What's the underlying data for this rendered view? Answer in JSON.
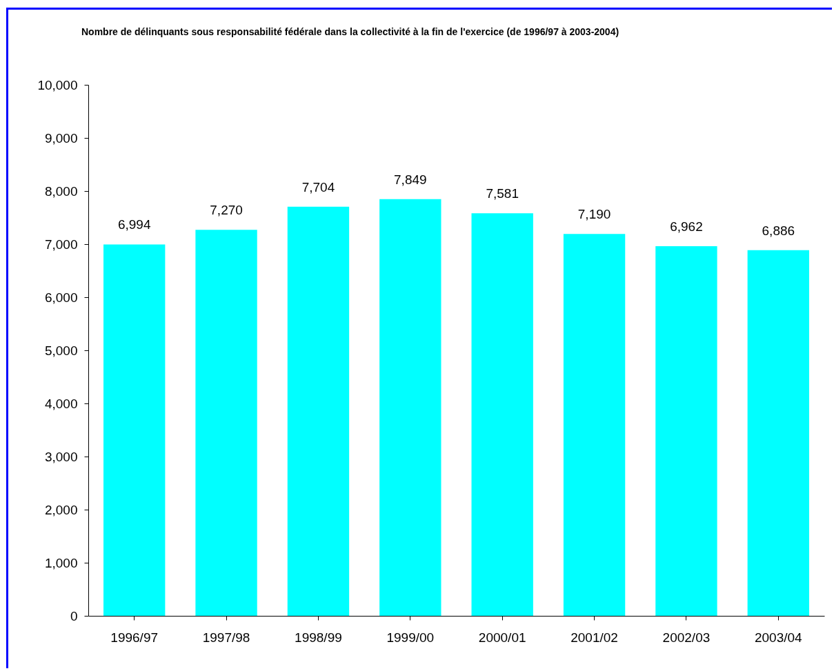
{
  "chart_data": {
    "type": "bar",
    "title": "Nombre de délinquants sous responsabilité fédérale dans la collectivité à la fin de l'exercice (de 1996/97 à 2003-2004)",
    "categories": [
      "1996/97",
      "1997/98",
      "1998/99",
      "1999/00",
      "2000/01",
      "2001/02",
      "2002/03",
      "2003/04"
    ],
    "values": [
      6994,
      7270,
      7704,
      7849,
      7581,
      7190,
      6962,
      6886
    ],
    "value_labels": [
      "6,994",
      "7,270",
      "7,704",
      "7,849",
      "7,581",
      "7,190",
      "6,962",
      "6,886"
    ],
    "color": "#00ffff",
    "grid": false,
    "ylim": [
      0,
      10000
    ],
    "yticks": [
      0,
      {
        "value": 1000,
        "label": "1,000"
      },
      {
        "value": 2000,
        "label": "2,000"
      },
      {
        "value": 3000,
        "label": "3,000"
      },
      {
        "value": 4000,
        "label": "4,000"
      },
      {
        "value": 5000,
        "label": "5,000"
      },
      {
        "value": 6000,
        "label": "6,000"
      },
      {
        "value": 7000,
        "label": "7,000"
      },
      {
        "value": 8000,
        "label": "8,000"
      },
      {
        "value": 9000,
        "label": "9,000"
      },
      {
        "value": 10000,
        "label": "10,000"
      }
    ]
  }
}
